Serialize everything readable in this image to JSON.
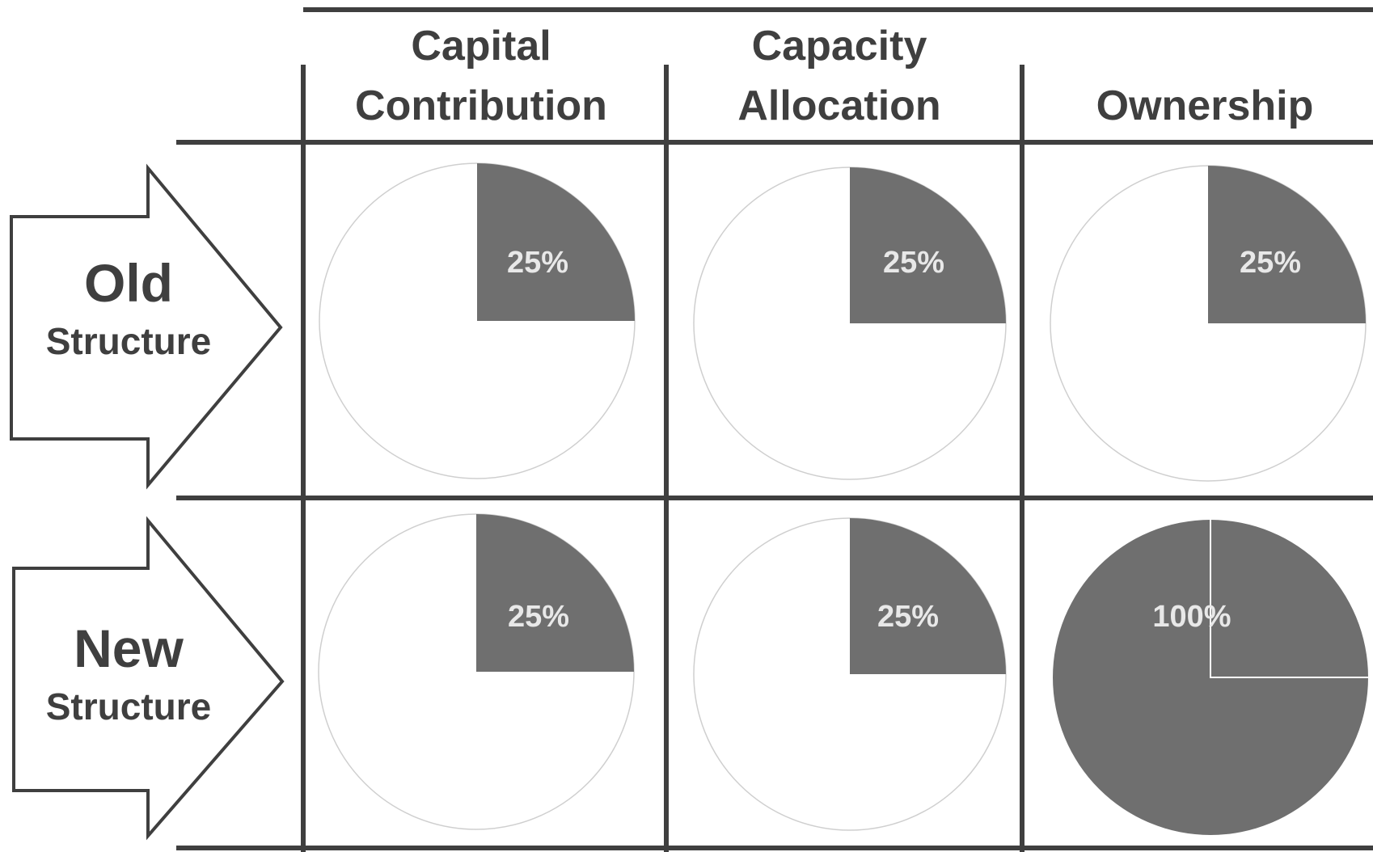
{
  "columns": [
    {
      "line1": "Capital",
      "line2": "Contribution"
    },
    {
      "line1": "Capacity",
      "line2": "Allocation"
    },
    {
      "line1": "",
      "line2": "Ownership"
    }
  ],
  "rows": [
    {
      "line1": "Old",
      "line2": "Structure"
    },
    {
      "line1": "New",
      "line2": "Structure"
    }
  ],
  "cells": [
    [
      {
        "value": 25,
        "label": "25%"
      },
      {
        "value": 25,
        "label": "25%"
      },
      {
        "value": 25,
        "label": "25%"
      }
    ],
    [
      {
        "value": 25,
        "label": "25%"
      },
      {
        "value": 25,
        "label": "25%"
      },
      {
        "value": 100,
        "label": "100%"
      }
    ]
  ],
  "colors": {
    "slice": "#6f6f6f",
    "line": "#3f3f3f",
    "text": "#3f3f3f",
    "label": "#e8e8e8"
  }
}
